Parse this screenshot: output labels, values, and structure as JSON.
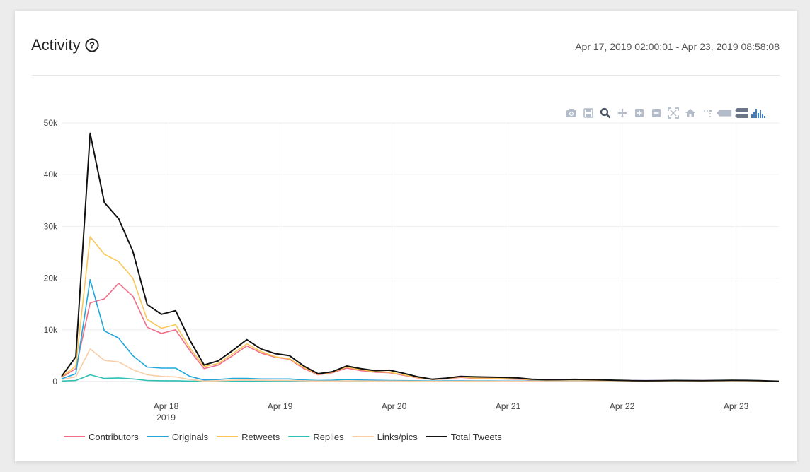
{
  "header": {
    "title": "Activity",
    "date_range": "Apr 17, 2019 02:00:01 - Apr 23, 2019 08:58:08"
  },
  "modebar": {
    "icons": [
      "camera-icon",
      "save-icon",
      "zoom-icon",
      "pan-icon",
      "zoom-in-icon",
      "zoom-out-icon",
      "autoscale-icon",
      "reset-axes-icon",
      "spike-lines-icon",
      "hover-closest-icon",
      "hover-compare-icon",
      "plotly-logo-icon"
    ]
  },
  "chart_data": {
    "type": "line",
    "title": "Activity",
    "xlabel": "",
    "ylabel": "",
    "ylim": [
      0,
      50000
    ],
    "yticks": [
      0,
      10000,
      20000,
      30000,
      40000,
      50000
    ],
    "ytick_labels": [
      "0",
      "10k",
      "20k",
      "30k",
      "40k",
      "50k"
    ],
    "xlim_hours": [
      0,
      151
    ],
    "xticks_hours": [
      22,
      46,
      70,
      94,
      118,
      142
    ],
    "xtick_labels": [
      "Apr 18",
      "Apr 19",
      "Apr 20",
      "Apr 21",
      "Apr 22",
      "Apr 23"
    ],
    "xtick_sublabel": "2019",
    "grid": true,
    "legend_position": "bottom",
    "x_hours": [
      0,
      3,
      6,
      9,
      12,
      15,
      18,
      21,
      24,
      27,
      30,
      33,
      36,
      39,
      42,
      45,
      48,
      51,
      54,
      57,
      60,
      63,
      66,
      69,
      72,
      75,
      78,
      81,
      84,
      87,
      90,
      93,
      96,
      99,
      102,
      105,
      108,
      111,
      114,
      117,
      120,
      123,
      126,
      129,
      132,
      135,
      138,
      141,
      144,
      147,
      151
    ],
    "series": [
      {
        "name": "Contributors",
        "color": "#f06e88",
        "values": [
          800,
          2500,
          15200,
          16000,
          19000,
          16500,
          10500,
          9300,
          10000,
          6000,
          2500,
          3200,
          5000,
          6900,
          5500,
          4700,
          4300,
          2500,
          1300,
          1700,
          2600,
          2100,
          1800,
          1700,
          1200,
          700,
          400,
          500,
          800,
          600,
          600,
          500,
          450,
          300,
          250,
          280,
          300,
          250,
          200,
          180,
          130,
          100,
          120,
          150,
          140,
          120,
          150,
          160,
          150,
          130,
          50
        ]
      },
      {
        "name": "Originals",
        "color": "#1fa7dc",
        "values": [
          500,
          1500,
          19700,
          9800,
          8400,
          5000,
          2800,
          2600,
          2600,
          1000,
          300,
          400,
          600,
          600,
          500,
          500,
          500,
          300,
          200,
          250,
          400,
          300,
          250,
          200,
          180,
          150,
          100,
          120,
          150,
          120,
          120,
          100,
          90,
          80,
          70,
          60,
          60,
          50,
          40,
          40,
          30,
          30,
          30,
          30,
          30,
          30,
          30,
          30,
          30,
          30,
          10
        ]
      },
      {
        "name": "Retweets",
        "color": "#fac656",
        "values": [
          900,
          3000,
          28000,
          24600,
          23200,
          20000,
          12000,
          10300,
          11000,
          6500,
          2900,
          3500,
          5400,
          7300,
          5800,
          4800,
          4400,
          2700,
          1400,
          1800,
          2800,
          2300,
          1900,
          1800,
          1300,
          750,
          400,
          550,
          900,
          700,
          700,
          600,
          500,
          350,
          280,
          300,
          320,
          280,
          220,
          200,
          150,
          110,
          130,
          160,
          150,
          130,
          160,
          170,
          160,
          140,
          50
        ]
      },
      {
        "name": "Replies",
        "color": "#2fc0b5",
        "values": [
          100,
          200,
          1300,
          600,
          700,
          500,
          200,
          150,
          150,
          80,
          40,
          40,
          50,
          60,
          50,
          50,
          50,
          40,
          30,
          30,
          40,
          30,
          30,
          30,
          20,
          20,
          10,
          10,
          20,
          20,
          20,
          20,
          10,
          10,
          10,
          10,
          10,
          10,
          10,
          10,
          10,
          10,
          10,
          10,
          10,
          10,
          10,
          10,
          10,
          10,
          0
        ]
      },
      {
        "name": "Links/pics",
        "color": "#f9cda6",
        "values": [
          400,
          900,
          6300,
          4100,
          3800,
          2300,
          1300,
          1000,
          900,
          400,
          100,
          150,
          250,
          300,
          250,
          200,
          200,
          150,
          100,
          100,
          150,
          120,
          100,
          100,
          80,
          50,
          30,
          40,
          60,
          50,
          50,
          40,
          40,
          30,
          20,
          20,
          20,
          20,
          20,
          20,
          10,
          10,
          10,
          10,
          10,
          10,
          10,
          10,
          10,
          10,
          0
        ]
      },
      {
        "name": "Total Tweets",
        "color": "#111111",
        "values": [
          1000,
          4800,
          48000,
          34600,
          31500,
          25200,
          14900,
          13000,
          13700,
          8000,
          3200,
          4000,
          6000,
          8100,
          6300,
          5400,
          5000,
          3000,
          1500,
          1900,
          3000,
          2500,
          2100,
          2200,
          1600,
          900,
          450,
          650,
          1000,
          900,
          850,
          800,
          700,
          450,
          350,
          380,
          420,
          380,
          300,
          250,
          180,
          150,
          160,
          200,
          190,
          170,
          210,
          230,
          220,
          180,
          60
        ]
      }
    ]
  }
}
